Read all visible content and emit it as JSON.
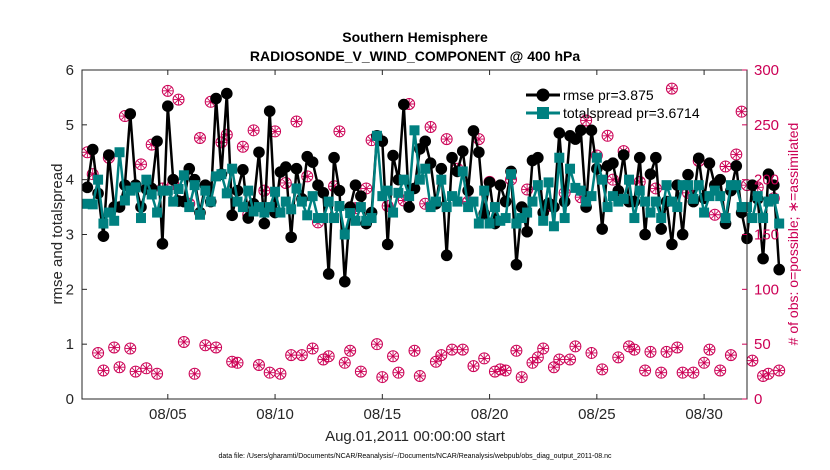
{
  "chart_data": {
    "type": "line",
    "title": "Southern Hemisphere",
    "subtitle": "RADIOSONDE_V_WIND_COMPONENT @ 400 hPa",
    "xlabel": "Aug.01,2011 00:00:00 start",
    "ylabel": "rmse and totalspread",
    "ylabel_right": "# of obs: o=possible; ∗=assimilated",
    "xlim": [
      1,
      32
    ],
    "ylim": [
      0,
      6
    ],
    "ylim_right": [
      0,
      300
    ],
    "x_ticks": [
      5,
      10,
      15,
      20,
      25,
      30
    ],
    "x_tick_labels": [
      "08/05",
      "08/10",
      "08/15",
      "08/20",
      "08/25",
      "08/30"
    ],
    "y_ticks": [
      "0",
      "1",
      "2",
      "3",
      "4",
      "5",
      "6"
    ],
    "y_ticks_right": [
      "0",
      "50",
      "100",
      "150",
      "200",
      "250",
      "300"
    ],
    "footnote": "data file: /Users/gharamti/Documents/NCAR/Reanalysis/~/Documents/NCAR/Reanalysis/webpub/obs_diag_output_2011-08.nc",
    "colors": {
      "rmse": "#000000",
      "spread": "#008080",
      "obs": "#cc0055"
    },
    "series": [
      {
        "name": "rmse pr=3.875",
        "values": [
          3.86,
          4.55,
          3.75,
          2.97,
          4.45,
          3.5,
          3.5,
          3.9,
          5.2,
          3.9,
          3.5,
          3.83,
          3.84,
          4.7,
          2.83,
          5.34,
          4.0,
          3.61,
          3.6,
          4.2,
          4.0,
          3.4,
          3.9,
          3.6,
          5.48,
          4.1,
          5.57,
          3.35,
          3.8,
          4.18,
          3.3,
          3.56,
          4.5,
          3.2,
          5.25,
          3.4,
          4.14,
          4.23,
          2.95,
          4.2,
          3.65,
          4.42,
          4.32,
          3.9,
          3.76,
          2.28,
          4.4,
          3.8,
          2.14,
          3.5,
          3.9,
          3.7,
          3.2,
          3.4,
          4.8,
          4.7,
          2.82,
          4.44,
          4.0,
          5.37,
          3.5,
          3.84,
          4.56,
          4.7,
          4.3,
          3.56,
          4.2,
          2.62,
          4.4,
          4.15,
          4.52,
          3.8,
          4.89,
          4.5,
          3.38,
          3.95,
          3.2,
          3.9,
          3.6,
          4.15,
          2.45,
          3.5,
          3.05,
          4.35,
          4.4,
          3.4,
          3.57,
          3.5,
          4.85,
          3.6,
          4.8,
          4.74,
          4.9,
          3.5,
          4.9,
          4.2,
          3.1,
          4.25,
          4.3,
          3.8,
          4.45,
          3.6,
          3.6,
          4.4,
          3.0,
          4.1,
          4.4,
          3.1,
          3.6,
          2.82,
          3.9,
          3.0,
          4.09,
          3.6,
          4.39,
          3.66,
          4.3,
          3.9,
          4.0,
          3.2,
          3.8,
          4.25,
          3.4,
          2.93,
          3.9,
          3.65,
          2.56,
          4.1,
          3.9,
          2.36
        ]
      },
      {
        "name": "totalspread pr=3.6714",
        "values": [
          3.56,
          3.55,
          4.0,
          3.2,
          3.4,
          3.25,
          4.5,
          3.62,
          3.8,
          3.86,
          3.3,
          4.0,
          3.73,
          3.4,
          3.8,
          3.8,
          3.6,
          3.83,
          4.08,
          3.5,
          3.9,
          3.36,
          3.8,
          3.6,
          4.06,
          4.1,
          3.75,
          4.2,
          3.6,
          3.5,
          3.8,
          3.42,
          3.5,
          3.4,
          3.5,
          3.78,
          3.4,
          3.6,
          3.46,
          3.84,
          3.6,
          3.35,
          3.7,
          3.3,
          3.3,
          3.6,
          3.3,
          3.52,
          3.0,
          3.39,
          3.25,
          3.5,
          3.25,
          3.3,
          4.8,
          3.7,
          3.8,
          3.4,
          3.76,
          4.0,
          3.7,
          4.9,
          4.0,
          4.2,
          3.5,
          3.6,
          4.0,
          3.5,
          3.7,
          3.6,
          4.15,
          3.5,
          3.6,
          3.2,
          3.8,
          3.2,
          3.5,
          3.25,
          3.3,
          4.1,
          3.2,
          3.3,
          3.4,
          3.6,
          3.9,
          3.25,
          3.95,
          3.15,
          4.4,
          3.3,
          4.2,
          3.85,
          3.8,
          3.6,
          3.7,
          4.4,
          4.0,
          3.5,
          3.7,
          3.6,
          3.65,
          4.0,
          3.3,
          3.8,
          3.6,
          3.4,
          3.6,
          3.3,
          3.9,
          3.6,
          3.5,
          3.9,
          3.9,
          3.65,
          3.9,
          3.4,
          3.7,
          3.8,
          3.7,
          3.3,
          3.9,
          3.9,
          3.5,
          3.5,
          3.3,
          3.7,
          3.3,
          3.6,
          3.65,
          3.2
        ]
      }
    ],
    "obs_possible": [
      225,
      205,
      42,
      26,
      220,
      47,
      29,
      258,
      46,
      25,
      214,
      28,
      232,
      23,
      192,
      281,
      196,
      273,
      52,
      178,
      23,
      238,
      49,
      271,
      47,
      234,
      241,
      34,
      33,
      230,
      168,
      245,
      31,
      190,
      24,
      244,
      23,
      197,
      40,
      253,
      40,
      203,
      46,
      161,
      36,
      39,
      194,
      244,
      33,
      44,
      174,
      25,
      192,
      236,
      50,
      20,
      176,
      39,
      24,
      181,
      269,
      44,
      21,
      178,
      248,
      34,
      40,
      237,
      45,
      210,
      45,
      180,
      30,
      237,
      37,
      198,
      25,
      27,
      26,
      200,
      44,
      20,
      191,
      33,
      38,
      46,
      176,
      29,
      36,
      188,
      36,
      48,
      184,
      254,
      42,
      222,
      27,
      240,
      200,
      38,
      226,
      48,
      45,
      198,
      26,
      43,
      192,
      24,
      43,
      283,
      47,
      24,
      188,
      24,
      217,
      33,
      45,
      168,
      26,
      212,
      40,
      223,
      262,
      195,
      35,
      193,
      21,
      23,
      183,
      26
    ]
  }
}
